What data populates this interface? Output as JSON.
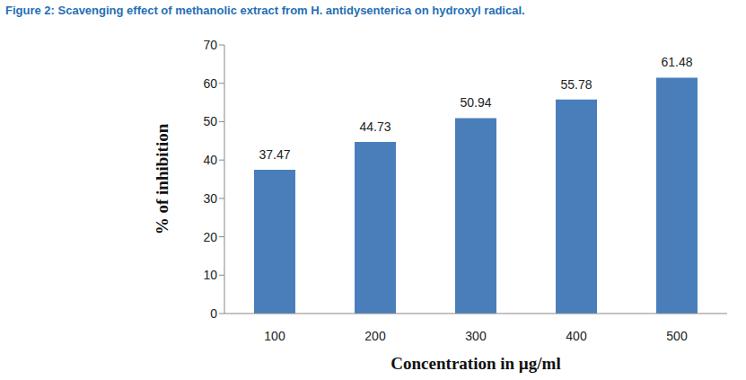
{
  "chart_data": {
    "type": "bar",
    "title": "Figure 2: Scavenging effect of methanolic extract from H. antidysenterica on hydroxyl radical.",
    "x_label": "Concentration in µg/ml",
    "y_label": "% of inhibition",
    "categories": [
      "100",
      "200",
      "300",
      "400",
      "500"
    ],
    "values": [
      37.47,
      44.73,
      50.94,
      55.78,
      61.48
    ],
    "color": "#4a7ebb",
    "ylim": [
      0,
      70
    ],
    "yticks": [
      0,
      10,
      20,
      30,
      40,
      50,
      60,
      70
    ],
    "grid": false,
    "data_labels": true
  }
}
